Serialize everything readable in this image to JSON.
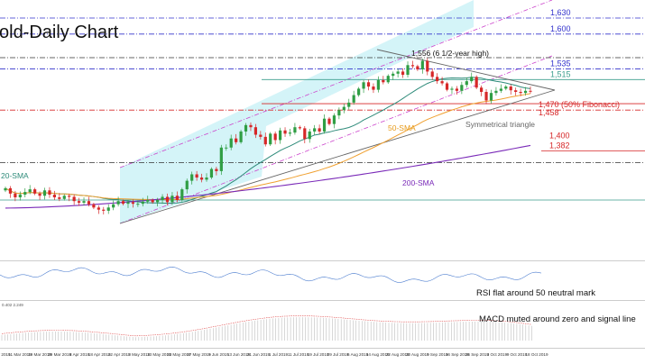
{
  "chart_data": {
    "type": "candlestick",
    "title": "old-Daily Chart",
    "price_axis_levels": [
      {
        "value": 1630,
        "label": "1,630",
        "color": "#3333cc",
        "line": "dashdot"
      },
      {
        "value": 1600,
        "label": "1,600",
        "color": "#3333cc",
        "line": "dashdot"
      },
      {
        "value": 1556,
        "label": "",
        "color": "#333333",
        "line": "dashdot"
      },
      {
        "value": 1535,
        "label": "1,535",
        "color": "#3333cc",
        "line": "dashdot"
      },
      {
        "value": 1515,
        "label": "1,515",
        "color": "#3a9d8c",
        "line": "solid"
      },
      {
        "value": 1470,
        "label": "1,470 (50% Fibonacci)",
        "color": "#d62728",
        "line": "solid"
      },
      {
        "value": 1458,
        "label": "1,458",
        "color": "#d62728",
        "line": "dashdot"
      },
      {
        "value": 1400,
        "label": "1,400",
        "color": "#d62728",
        "line": "none"
      },
      {
        "value": 1382,
        "label": "1,382",
        "color": "#d62728",
        "line": "solid"
      },
      {
        "value": 1360,
        "label": "",
        "color": "#333333",
        "line": "dashdot"
      },
      {
        "value": 1290,
        "label": "",
        "color": "#3a9d8c",
        "line": "solid"
      }
    ],
    "annotations": {
      "peak": "1,556 (6 1/2-year high)",
      "triangle": "Symmetrical triangle",
      "sma20": "20-SMA",
      "sma50": "50-SMA",
      "sma200": "200-SMA",
      "rsi_note": "RSI flat around 50 neutral mark",
      "macd_note": "MACD muted around zero and signal line",
      "macd_values": "0.402 2.249"
    },
    "x_tick_labels": [
      "1 Mar 2019",
      "11 Mar 2019",
      "19 Mar 2019",
      "29 Mar 2019",
      "8 Apr 2019",
      "18 Apr 2019",
      "22 Apr 2019",
      "3 May 2019",
      "13 May 2019",
      "23 May 2019",
      "27 May 2019",
      "5 Jun 2019",
      "13 Jun 2019",
      "21 Jun 2019",
      "1 Jul 2019",
      "11 Jul 2019",
      "19 Jul 2019",
      "29 Jul 2019",
      "6 Aug 2019",
      "14 Aug 2019",
      "22 Aug 2019",
      "30 Aug 2019",
      "9 Sep 2019",
      "16 Sep 2019",
      "26 Sep 2019",
      "3 Oct 2019",
      "9 Oct 2019",
      "18 Oct 2019"
    ],
    "close_prices": [
      1312,
      1302,
      1295,
      1300,
      1305,
      1310,
      1302,
      1298,
      1308,
      1300,
      1295,
      1292,
      1298,
      1296,
      1288,
      1285,
      1288,
      1282,
      1276,
      1272,
      1270,
      1276,
      1282,
      1288,
      1283,
      1286,
      1283,
      1283,
      1287,
      1290,
      1286,
      1290,
      1296,
      1286,
      1298,
      1290,
      1310,
      1326,
      1338,
      1332,
      1328,
      1332,
      1348,
      1344,
      1388,
      1388,
      1405,
      1398,
      1418,
      1430,
      1426,
      1412,
      1408,
      1394,
      1414,
      1402,
      1420,
      1414,
      1416,
      1426,
      1424,
      1404,
      1418,
      1424,
      1418,
      1442,
      1432,
      1448,
      1458,
      1464,
      1472,
      1486,
      1498,
      1510,
      1502,
      1496,
      1514,
      1510,
      1522,
      1526,
      1530,
      1524,
      1542,
      1540,
      1534,
      1550,
      1530,
      1520,
      1512,
      1508,
      1496,
      1498,
      1494,
      1505,
      1512,
      1520,
      1500,
      1492,
      1476,
      1490,
      1494,
      1498,
      1502,
      1495,
      1492,
      1490,
      1494,
      1493
    ]
  }
}
